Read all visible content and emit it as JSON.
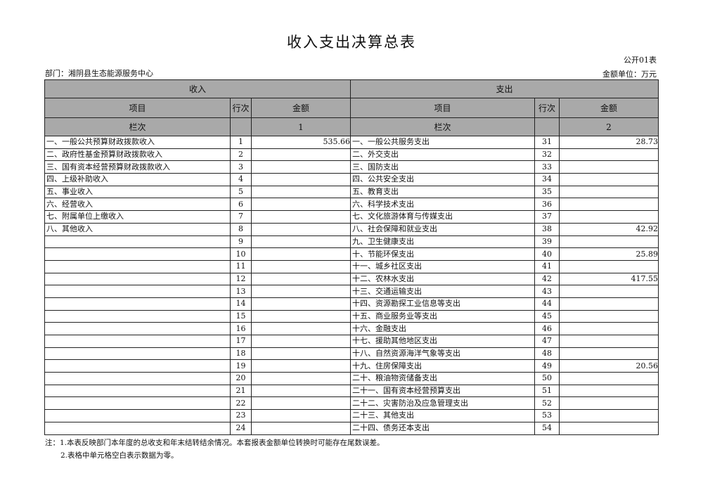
{
  "title": "收入支出决算总表",
  "form_code": "公开01表",
  "department": "部门：湘阴县生态能源服务中心",
  "unit": "金额单位：万元",
  "header": {
    "income": "收入",
    "expense": "支出",
    "item": "项目",
    "row_no": "行次",
    "amount": "金额",
    "column_no": "栏次",
    "income_col": "1",
    "expense_col": "2"
  },
  "rows": [
    {
      "in_item": "一、一般公共预算财政拨款收入",
      "in_no": "1",
      "in_amt": "535.66",
      "ex_item": "一、一般公共服务支出",
      "ex_no": "31",
      "ex_amt": "28.73"
    },
    {
      "in_item": "二、政府性基金预算财政拨款收入",
      "in_no": "2",
      "in_amt": "",
      "ex_item": "二、外交支出",
      "ex_no": "32",
      "ex_amt": ""
    },
    {
      "in_item": "三、国有资本经营预算财政拨款收入",
      "in_no": "3",
      "in_amt": "",
      "ex_item": "三、国防支出",
      "ex_no": "33",
      "ex_amt": ""
    },
    {
      "in_item": "四、上级补助收入",
      "in_no": "4",
      "in_amt": "",
      "ex_item": "四、公共安全支出",
      "ex_no": "34",
      "ex_amt": ""
    },
    {
      "in_item": "五、事业收入",
      "in_no": "5",
      "in_amt": "",
      "ex_item": "五、教育支出",
      "ex_no": "35",
      "ex_amt": ""
    },
    {
      "in_item": "六、经营收入",
      "in_no": "6",
      "in_amt": "",
      "ex_item": "六、科学技术支出",
      "ex_no": "36",
      "ex_amt": ""
    },
    {
      "in_item": "七、附属单位上缴收入",
      "in_no": "7",
      "in_amt": "",
      "ex_item": "七、文化旅游体育与传媒支出",
      "ex_no": "37",
      "ex_amt": ""
    },
    {
      "in_item": "八、其他收入",
      "in_no": "8",
      "in_amt": "",
      "ex_item": "八、社会保障和就业支出",
      "ex_no": "38",
      "ex_amt": "42.92"
    },
    {
      "in_item": "",
      "in_no": "9",
      "in_amt": "",
      "ex_item": "九、卫生健康支出",
      "ex_no": "39",
      "ex_amt": ""
    },
    {
      "in_item": "",
      "in_no": "10",
      "in_amt": "",
      "ex_item": "十、节能环保支出",
      "ex_no": "40",
      "ex_amt": "25.89"
    },
    {
      "in_item": "",
      "in_no": "11",
      "in_amt": "",
      "ex_item": "十一、城乡社区支出",
      "ex_no": "41",
      "ex_amt": ""
    },
    {
      "in_item": "",
      "in_no": "12",
      "in_amt": "",
      "ex_item": "十二、农林水支出",
      "ex_no": "42",
      "ex_amt": "417.55"
    },
    {
      "in_item": "",
      "in_no": "13",
      "in_amt": "",
      "ex_item": "十三、交通运输支出",
      "ex_no": "43",
      "ex_amt": ""
    },
    {
      "in_item": "",
      "in_no": "14",
      "in_amt": "",
      "ex_item": "十四、资源勘探工业信息等支出",
      "ex_no": "44",
      "ex_amt": ""
    },
    {
      "in_item": "",
      "in_no": "15",
      "in_amt": "",
      "ex_item": "十五、商业服务业等支出",
      "ex_no": "45",
      "ex_amt": ""
    },
    {
      "in_item": "",
      "in_no": "16",
      "in_amt": "",
      "ex_item": "十六、金融支出",
      "ex_no": "46",
      "ex_amt": ""
    },
    {
      "in_item": "",
      "in_no": "17",
      "in_amt": "",
      "ex_item": "十七、援助其他地区支出",
      "ex_no": "47",
      "ex_amt": ""
    },
    {
      "in_item": "",
      "in_no": "18",
      "in_amt": "",
      "ex_item": "十八、自然资源海洋气象等支出",
      "ex_no": "48",
      "ex_amt": ""
    },
    {
      "in_item": "",
      "in_no": "19",
      "in_amt": "",
      "ex_item": "十九、住房保障支出",
      "ex_no": "49",
      "ex_amt": "20.56"
    },
    {
      "in_item": "",
      "in_no": "20",
      "in_amt": "",
      "ex_item": "二十、粮油物资储备支出",
      "ex_no": "50",
      "ex_amt": ""
    },
    {
      "in_item": "",
      "in_no": "21",
      "in_amt": "",
      "ex_item": "二十一、国有资本经营预算支出",
      "ex_no": "51",
      "ex_amt": ""
    },
    {
      "in_item": "",
      "in_no": "22",
      "in_amt": "",
      "ex_item": "二十二、灾害防治及应急管理支出",
      "ex_no": "52",
      "ex_amt": ""
    },
    {
      "in_item": "",
      "in_no": "23",
      "in_amt": "",
      "ex_item": "二十三、其他支出",
      "ex_no": "53",
      "ex_amt": ""
    },
    {
      "in_item": "",
      "in_no": "24",
      "in_amt": "",
      "ex_item": "二十四、债务还本支出",
      "ex_no": "54",
      "ex_amt": ""
    }
  ],
  "notes": [
    "注：1.本表反映部门本年度的总收支和年末结转结余情况。本套报表金额单位转换时可能存在尾数误差。",
    "2.表格中单元格空白表示数据为零。"
  ]
}
